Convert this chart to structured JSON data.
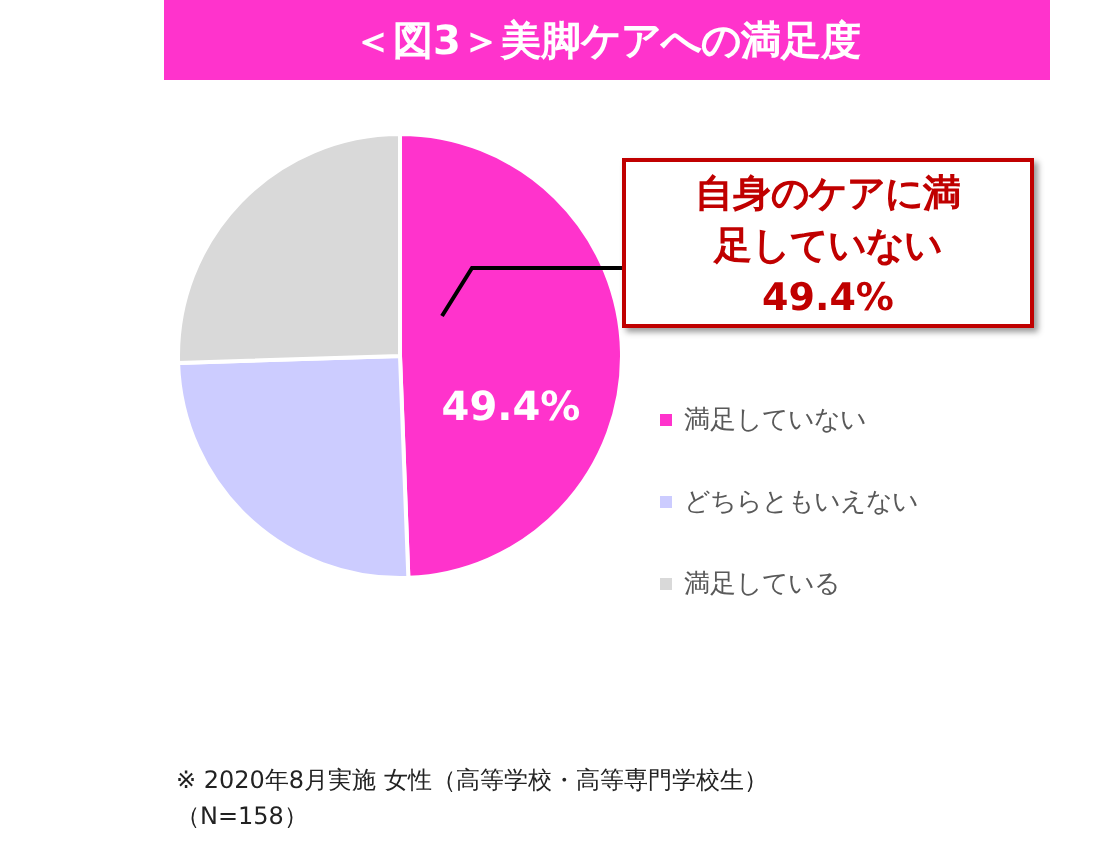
{
  "chart_data": {
    "type": "pie",
    "title": "＜図3＞美脚ケアへの満足度",
    "categories": [
      "満足していない",
      "どちらともいえない",
      "満足している"
    ],
    "values": [
      49.4,
      25.1,
      25.5
    ],
    "colors": [
      "#ff33cc",
      "#ccccff",
      "#d9d9d9"
    ],
    "value_labels": [
      "49.4%",
      null,
      null
    ],
    "legend": "right",
    "annotations": [
      "自身のケアに満足していない",
      "49.4%",
      "※ 2020年8月実施 女性（高等学校・高等専門学校生）（N=158）"
    ]
  }
}
